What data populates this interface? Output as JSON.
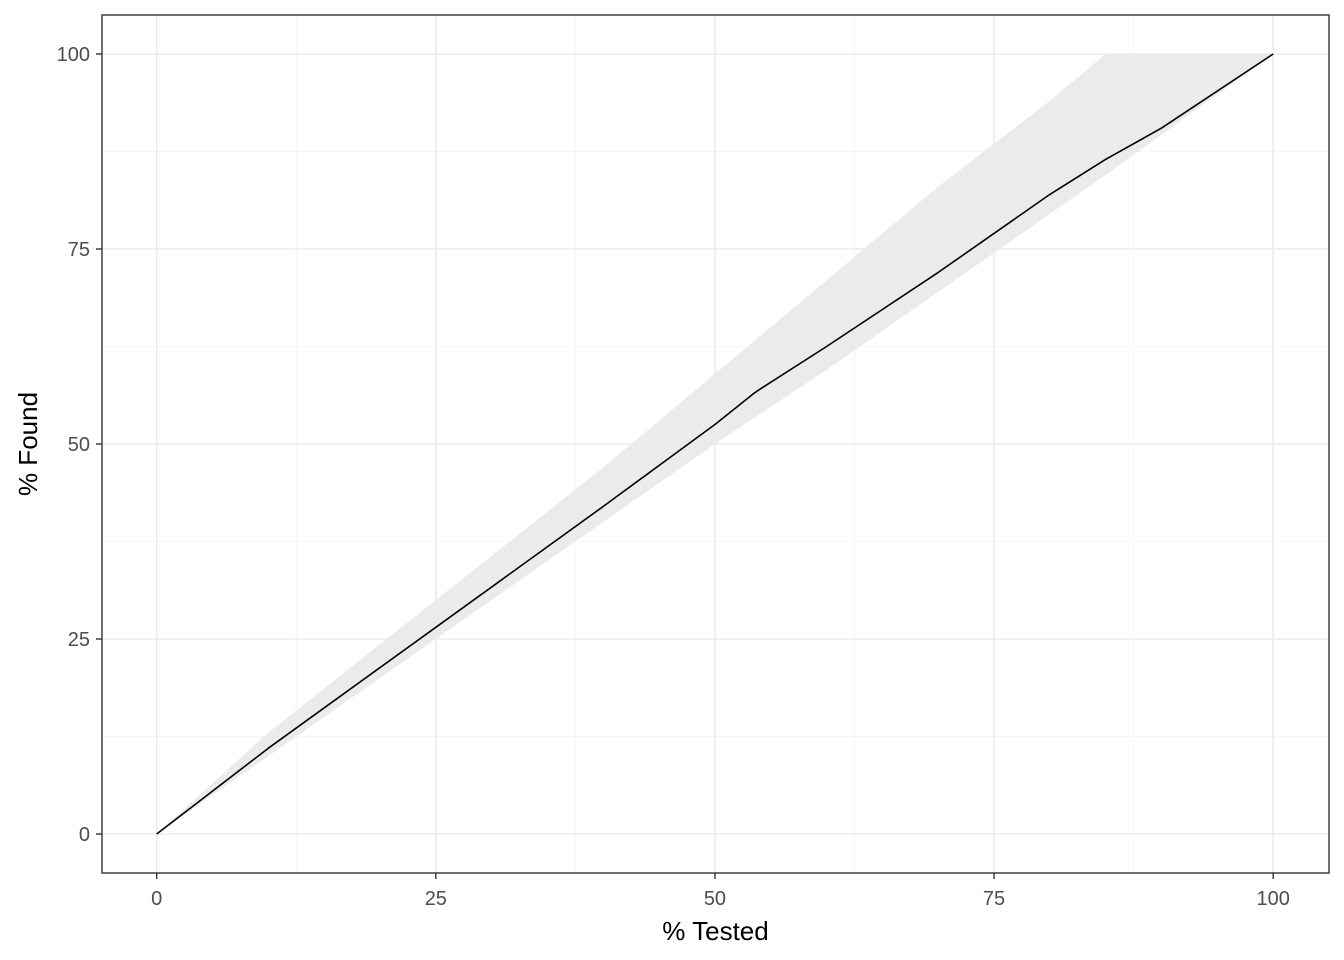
{
  "chart_data": {
    "type": "area",
    "title": "",
    "xlabel": "% Tested",
    "ylabel": "% Found",
    "xlim": [
      -4.9,
      105
    ],
    "ylim": [
      -5,
      105
    ],
    "grid": true,
    "legend": "none",
    "x_ticks": [
      0,
      25,
      50,
      75,
      100
    ],
    "x_tick_labels": [
      "0",
      "25",
      "50",
      "75",
      "100"
    ],
    "y_ticks": [
      0,
      25,
      50,
      75,
      100
    ],
    "y_tick_labels": [
      "0",
      "25",
      "50",
      "75",
      "100"
    ],
    "x_minor_ticks": [
      12.5,
      37.5,
      62.5,
      87.5
    ],
    "y_minor_ticks": [
      12.5,
      37.5,
      62.5,
      87.5
    ],
    "series": [
      {
        "kind": "line",
        "x": [
          0,
          10,
          25,
          40,
          50,
          53.5,
          54,
          60,
          70,
          80,
          85,
          90,
          100
        ],
        "y": [
          0,
          11,
          26.5,
          42,
          52.5,
          56.5,
          57,
          62.5,
          72,
          82,
          86.5,
          90.5,
          100
        ],
        "color": "#000000"
      },
      {
        "kind": "ribbon",
        "x": [
          0,
          10,
          25,
          40,
          50,
          60,
          70,
          80,
          85,
          100
        ],
        "upper": [
          0,
          13,
          30,
          47,
          59,
          71,
          83,
          94,
          100,
          100
        ],
        "lower": [
          0,
          10,
          25,
          40,
          50,
          59.5,
          69.5,
          79.5,
          84.5,
          100
        ],
        "color": "#ebebeb"
      }
    ],
    "colors": {
      "panel_border": "#333333",
      "grid_major": "#ebebeb",
      "grid_minor": "#f5f5f5",
      "ribbon": "#ebebeb",
      "line": "#000000",
      "tick_text": "#4d4d4d",
      "tick_mark": "#333333"
    }
  }
}
